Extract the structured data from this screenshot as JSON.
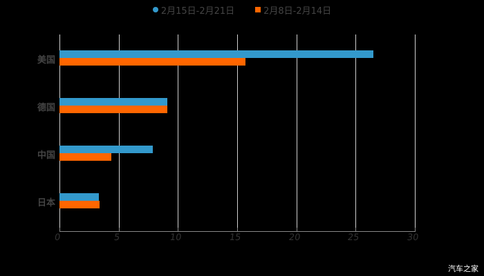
{
  "chart_data": {
    "type": "bar",
    "orientation": "horizontal",
    "title": "",
    "xlabel": "",
    "ylabel": "",
    "categories": [
      "美国",
      "德国",
      "中国",
      "日本"
    ],
    "series": [
      {
        "name": "2月15日-2月21日",
        "color": "#3399CC",
        "marker": "circle",
        "values": [
          26.5,
          9.1,
          7.9,
          3.3
        ]
      },
      {
        "name": "2月8日-2月14日",
        "color": "#FF6600",
        "marker": "square",
        "values": [
          15.7,
          9.1,
          4.4,
          3.4
        ]
      }
    ],
    "xlim": [
      0,
      30
    ],
    "xticks": [
      "0",
      "5",
      "10",
      "15",
      "20",
      "25",
      "30"
    ],
    "grid": "vertical",
    "legend_position": "top"
  },
  "legend": {
    "items": [
      {
        "label": "2月15日-2月21日",
        "color": "#3399CC"
      },
      {
        "label": "2月8日-2月14日",
        "color": "#FF6600"
      }
    ]
  },
  "axis": {
    "ticks": [
      "0",
      "5",
      "10",
      "15",
      "20",
      "25",
      "30"
    ]
  },
  "categories": [
    "美国",
    "德国",
    "中国",
    "日本"
  ],
  "watermark": "汽车之家"
}
